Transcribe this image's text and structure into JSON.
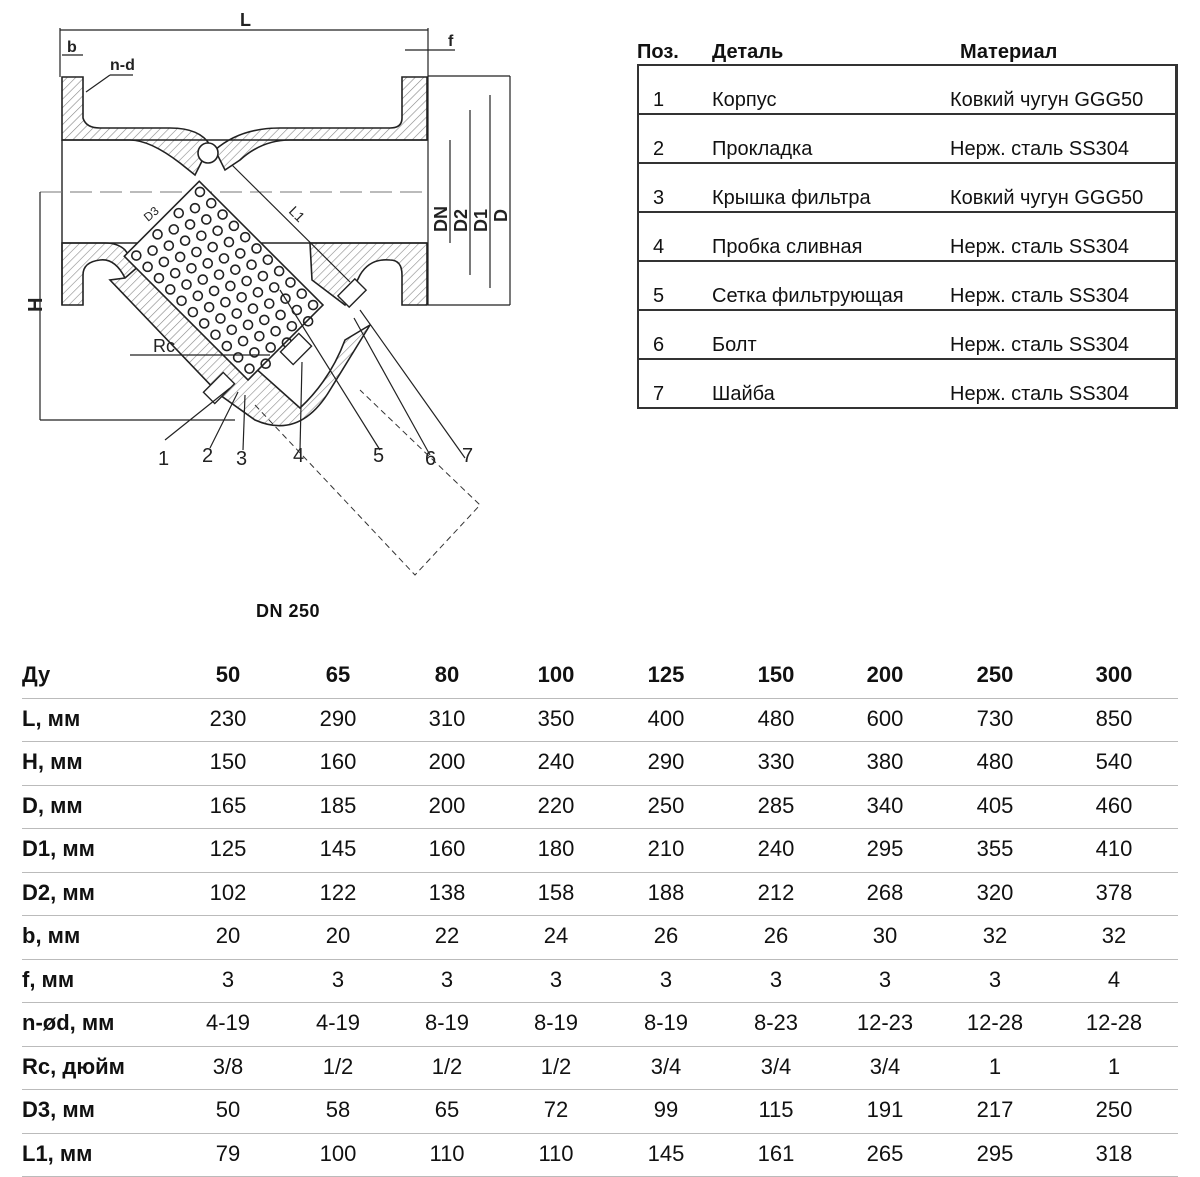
{
  "drawing": {
    "labels": {
      "L": "L",
      "b": "b",
      "nd": "n-d",
      "f": "f",
      "DN": "DN",
      "D2": "D2",
      "D1": "D1",
      "D": "D",
      "D3": "D3",
      "L1": "L1",
      "H": "H",
      "Rc": "Rc"
    },
    "callouts": [
      "1",
      "2",
      "3",
      "4",
      "5",
      "6",
      "7"
    ],
    "caption": "DN 250"
  },
  "parts": {
    "headers": {
      "pos": "Поз.",
      "detail": "Деталь",
      "material": "Материал"
    },
    "rows": [
      {
        "pos": "1",
        "detail": "Корпус",
        "material": "Ковкий чугун GGG50"
      },
      {
        "pos": "2",
        "detail": "Прокладка",
        "material": "Нерж. сталь SS304"
      },
      {
        "pos": "3",
        "detail": "Крышка фильтра",
        "material": "Ковкий чугун GGG50"
      },
      {
        "pos": "4",
        "detail": "Пробка сливная",
        "material": "Нерж. сталь SS304"
      },
      {
        "pos": "5",
        "detail": "Сетка фильтрующая",
        "material": "Нерж. сталь SS304"
      },
      {
        "pos": "6",
        "detail": "Болт",
        "material": "Нерж. сталь SS304"
      },
      {
        "pos": "7",
        "detail": "Шайба",
        "material": "Нерж. сталь SS304"
      }
    ]
  },
  "dimensions": {
    "header": {
      "label": "Ду",
      "values": [
        "50",
        "65",
        "80",
        "100",
        "125",
        "150",
        "200",
        "250",
        "300"
      ]
    },
    "rows": [
      {
        "label": "L, мм",
        "values": [
          "230",
          "290",
          "310",
          "350",
          "400",
          "480",
          "600",
          "730",
          "850"
        ]
      },
      {
        "label": "H, мм",
        "values": [
          "150",
          "160",
          "200",
          "240",
          "290",
          "330",
          "380",
          "480",
          "540"
        ]
      },
      {
        "label": "D, мм",
        "values": [
          "165",
          "185",
          "200",
          "220",
          "250",
          "285",
          "340",
          "405",
          "460"
        ]
      },
      {
        "label": "D1, мм",
        "values": [
          "125",
          "145",
          "160",
          "180",
          "210",
          "240",
          "295",
          "355",
          "410"
        ]
      },
      {
        "label": "D2, мм",
        "values": [
          "102",
          "122",
          "138",
          "158",
          "188",
          "212",
          "268",
          "320",
          "378"
        ]
      },
      {
        "label": "b, мм",
        "values": [
          "20",
          "20",
          "22",
          "24",
          "26",
          "26",
          "30",
          "32",
          "32"
        ]
      },
      {
        "label": "f, мм",
        "values": [
          "3",
          "3",
          "3",
          "3",
          "3",
          "3",
          "3",
          "3",
          "4"
        ]
      },
      {
        "label": "n-ød, мм",
        "values": [
          "4-19",
          "4-19",
          "8-19",
          "8-19",
          "8-19",
          "8-23",
          "12-23",
          "12-28",
          "12-28"
        ]
      },
      {
        "label": "Rc, дюйм",
        "values": [
          "3/8",
          "1/2",
          "1/2",
          "1/2",
          "3/4",
          "3/4",
          "3/4",
          "1",
          "1"
        ]
      },
      {
        "label": "D3, мм",
        "values": [
          "50",
          "58",
          "65",
          "72",
          "99",
          "115",
          "191",
          "217",
          "250"
        ]
      },
      {
        "label": "L1, мм",
        "values": [
          "79",
          "100",
          "110",
          "110",
          "145",
          "161",
          "265",
          "295",
          "318"
        ]
      }
    ]
  }
}
